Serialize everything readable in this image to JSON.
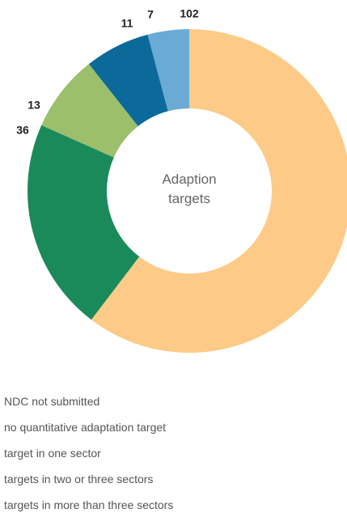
{
  "chart_data": {
    "type": "donut",
    "center_label": "Adaption targets",
    "categories": [
      "NDC not submitted",
      "no quantitative adaptation target",
      "target in one sector",
      "targets in two or three sectors",
      "targets in more than three sectors"
    ],
    "values": [
      102,
      36,
      13,
      11,
      7
    ],
    "colors": [
      "#fdcb87",
      "#1b8a5a",
      "#9cbf6b",
      "#0b6a9a",
      "#6aaad4"
    ]
  }
}
